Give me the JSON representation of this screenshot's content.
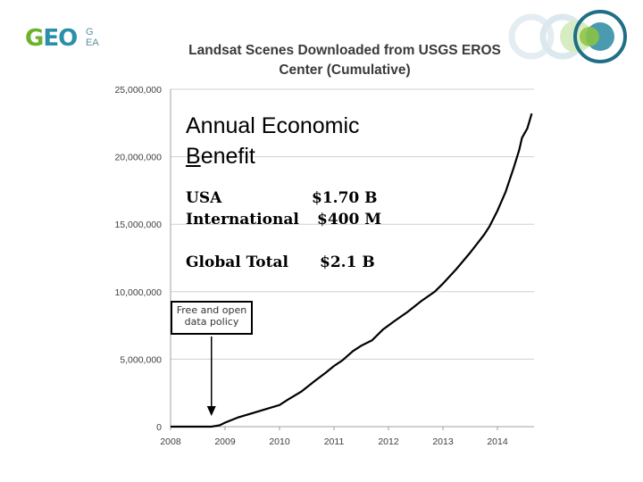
{
  "logo_left": {
    "mark_g": "G",
    "mark_eo": "EO",
    "sub_line1": "G",
    "sub_line2": "EA"
  },
  "logo_right_icon": "circle-logo-icon",
  "overlay": {
    "title_line1": "Annual Economic",
    "title_b": "B",
    "title_line2_rest": "enefit",
    "rows": [
      {
        "label": "USA",
        "value": "$1.70 B"
      },
      {
        "label": "International",
        "value": "$400 M"
      },
      {
        "label": "Global Total",
        "value": "$2.1 B"
      }
    ]
  },
  "note": {
    "line1": "Free and open",
    "line2": "data policy"
  },
  "chart_data": {
    "type": "line",
    "title": "Landsat Scenes Downloaded from USGS EROS Center (Cumulative)",
    "title_lines": [
      "Landsat Scenes Downloaded from USGS EROS",
      "Center  (Cumulative)"
    ],
    "xlabel": "",
    "ylabel": "",
    "xlim": [
      2008,
      2014.7
    ],
    "ylim": [
      0,
      25000000
    ],
    "x_ticks": [
      "2008",
      "2009",
      "2010",
      "2011",
      "2012",
      "2013",
      "2014"
    ],
    "x_tick_values": [
      2008,
      2009,
      2010,
      2011,
      2012,
      2013,
      2014
    ],
    "y_ticks": [
      "0",
      "5,000,000",
      "10,000,000",
      "15,000,000",
      "20,000,000",
      "25,000,000"
    ],
    "y_tick_values": [
      0,
      5000000,
      10000000,
      15000000,
      20000000,
      25000000
    ],
    "grid": "horizontal",
    "annotation": {
      "text": "Free and open data policy",
      "x": 2008.75
    },
    "series": [
      {
        "x": [
          2008.0,
          2008.75,
          2008.9,
          2009.0,
          2009.25,
          2009.5,
          2009.75,
          2010.0,
          2010.15,
          2010.4,
          2010.65,
          2010.85,
          2011.0,
          2011.15,
          2011.35,
          2011.5,
          2011.7,
          2011.9,
          2012.1,
          2012.35,
          2012.6,
          2012.85,
          2013.0,
          2013.25,
          2013.5,
          2013.75,
          2013.85,
          2014.0,
          2014.15,
          2014.3,
          2014.4,
          2014.45,
          2014.55,
          2014.63
        ],
        "y": [
          0,
          0,
          100000,
          300000,
          700000,
          1000000,
          1300000,
          1600000,
          2000000,
          2600000,
          3400000,
          4000000,
          4500000,
          4900000,
          5600000,
          6000000,
          6400000,
          7200000,
          7800000,
          8500000,
          9300000,
          10000000,
          10600000,
          11700000,
          12900000,
          14200000,
          14800000,
          16000000,
          17400000,
          19200000,
          20500000,
          21400000,
          22100000,
          23200000
        ]
      }
    ]
  }
}
